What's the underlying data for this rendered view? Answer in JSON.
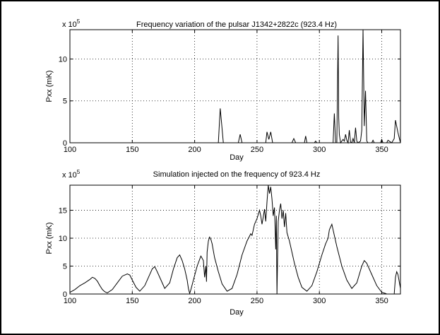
{
  "chart_data": [
    {
      "type": "line",
      "title": "Frequency variation of the pulsar J1342+2822c (923.4 Hz)",
      "xlabel": "Day",
      "ylabel": "Pxx (mK)",
      "multiplier": "x 10",
      "multiplier_exp": "5",
      "xlim": [
        100,
        365
      ],
      "ylim": [
        0,
        13.5
      ],
      "xticks": [
        100,
        150,
        200,
        250,
        300,
        350
      ],
      "yticks": [
        0,
        5,
        10
      ],
      "grid": true,
      "series": [
        {
          "x": [
            100,
            200,
            219,
            220.5,
            221.5,
            223,
            235,
            236.5,
            238,
            257,
            258,
            259.5,
            261,
            262.5,
            264,
            278,
            279.5,
            281,
            288,
            289,
            290,
            296,
            297,
            298,
            305,
            311,
            312,
            313,
            314,
            315,
            315.5,
            316,
            317,
            319,
            320,
            321,
            322,
            323,
            324,
            325,
            326,
            327,
            328,
            329,
            330,
            331,
            333,
            334,
            335,
            336,
            337,
            338,
            339,
            342,
            343,
            344,
            349,
            350,
            351,
            354,
            355,
            358,
            360,
            361,
            363,
            365
          ],
          "values": [
            0,
            0,
            0,
            4.1,
            2.5,
            0,
            0,
            1.0,
            0,
            0,
            1.3,
            0.4,
            1.3,
            0,
            0,
            0,
            0.5,
            0,
            0,
            0.8,
            0,
            0,
            0.2,
            0,
            0,
            0,
            3.5,
            0,
            0,
            12.8,
            3.0,
            1.0,
            0,
            0.4,
            0.2,
            1.0,
            0.3,
            0,
            1.5,
            0.1,
            0,
            0.5,
            0,
            1.8,
            0.2,
            0,
            0.2,
            1.5,
            13.6,
            2.0,
            6.2,
            0.2,
            0,
            0,
            0.3,
            0,
            0,
            0.4,
            0,
            0,
            0.3,
            0,
            0.5,
            2.7,
            1.2,
            0
          ]
        }
      ]
    },
    {
      "type": "line",
      "title": "Simulation injected on the frequency of 923.4 Hz",
      "xlabel": "Day",
      "ylabel": "Pxx (mK)",
      "multiplier": "x 10",
      "multiplier_exp": "5",
      "xlim": [
        100,
        365
      ],
      "ylim": [
        0,
        19.5
      ],
      "xticks": [
        100,
        150,
        200,
        250,
        300,
        350
      ],
      "yticks": [
        0,
        5,
        10,
        15
      ],
      "grid": true,
      "series": [
        {
          "x": [
            100,
            104,
            108,
            112,
            116,
            118,
            120,
            122,
            124,
            126,
            128,
            130,
            134,
            138,
            142,
            146,
            148,
            150,
            153,
            156,
            160,
            163,
            166,
            168,
            170,
            173,
            176,
            180,
            183,
            186,
            188,
            190,
            192,
            194,
            195,
            196,
            197,
            199,
            202,
            205,
            207,
            208,
            209,
            209.5,
            210,
            211,
            212,
            213,
            214,
            216,
            219,
            222,
            226,
            230,
            234,
            238,
            242,
            245,
            246,
            247,
            248,
            250,
            252,
            253,
            254,
            255,
            256,
            257,
            258,
            259,
            260,
            261,
            262,
            263,
            264,
            264.5,
            265,
            265.5,
            266,
            267,
            268,
            269,
            270,
            271,
            272,
            273,
            274,
            276,
            278,
            280,
            283,
            286,
            290,
            294,
            298,
            302,
            305,
            307,
            308,
            310,
            312,
            314,
            318,
            322,
            326,
            330,
            332,
            334,
            336,
            338,
            342,
            346,
            350,
            353,
            354,
            355,
            356,
            357,
            358,
            359,
            360,
            361,
            362,
            363,
            365
          ],
          "values": [
            0.3,
            0.8,
            1.5,
            2.0,
            2.6,
            3.0,
            2.8,
            2.3,
            1.5,
            0.8,
            0.4,
            0.2,
            0.8,
            2.0,
            3.2,
            3.6,
            3.4,
            2.5,
            1.2,
            0.5,
            1.5,
            3.0,
            4.5,
            4.9,
            4.0,
            2.5,
            1.0,
            2.0,
            4.5,
            6.5,
            7.0,
            6.0,
            4.5,
            2.5,
            1.0,
            0.1,
            0.8,
            2.5,
            5.0,
            6.8,
            6.0,
            3.0,
            5.0,
            2.2,
            7.5,
            9.5,
            10.2,
            9.8,
            9.0,
            6.5,
            4.0,
            1.8,
            0.5,
            1.0,
            3.5,
            7.0,
            9.5,
            10.8,
            10.5,
            11.5,
            12.5,
            13.5,
            15.0,
            14.0,
            12.5,
            13.8,
            15.2,
            13.0,
            16.5,
            19.5,
            18.0,
            19.2,
            17.0,
            14.0,
            15.5,
            12.0,
            8.0,
            14.0,
            0,
            13.0,
            15.0,
            16.2,
            13.5,
            15.0,
            12.0,
            14.5,
            11.0,
            9.5,
            7.5,
            5.5,
            3.0,
            1.2,
            0.5,
            1.5,
            4.0,
            7.0,
            9.0,
            10.0,
            11.5,
            12.5,
            10.5,
            8.5,
            5.0,
            2.5,
            1.0,
            2.0,
            3.5,
            5.0,
            6.0,
            5.5,
            3.5,
            1.5,
            0.3,
            0.1,
            0,
            0,
            0,
            0,
            0,
            0,
            0,
            3.0,
            4.0,
            3.5,
            1.0
          ]
        }
      ]
    }
  ]
}
